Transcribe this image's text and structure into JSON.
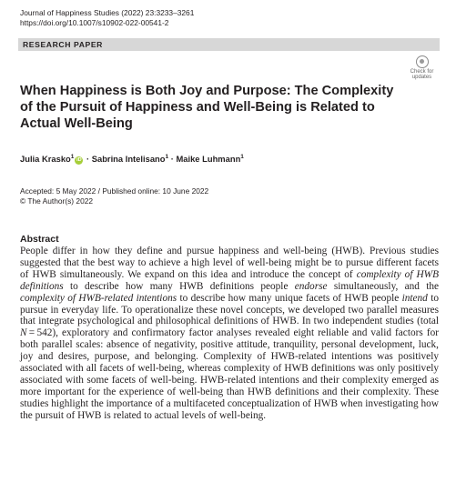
{
  "header": {
    "journal": "Journal of Happiness Studies (2022) 23:3233–3261",
    "doi": "https://doi.org/10.1007/s10902-022-00541-2"
  },
  "banner": "RESEARCH PAPER",
  "check_updates": {
    "line1": "Check for",
    "line2": "updates"
  },
  "title": "When Happiness is Both Joy and Purpose: The Complexity of the Pursuit of Happiness and Well-Being is Related to Actual Well-Being",
  "authors": [
    {
      "name": "Julia Krasko",
      "sup": "1",
      "orcid": true
    },
    {
      "name": "Sabrina Intelisano",
      "sup": "1",
      "orcid": false
    },
    {
      "name": "Maike Luhmann",
      "sup": "1",
      "orcid": false
    }
  ],
  "author_separator": " · ",
  "orcid_label": "iD",
  "dates": "Accepted: 5 May 2022 / Published online: 10 June 2022",
  "rights": "© The Author(s) 2022",
  "abstract_heading": "Abstract",
  "abstract": [
    {
      "t": "People differ in how they define and pursue happiness and well-being (HWB). Previous studies suggested that the best way to achieve a high level of well-being might be to pur­sue different facets of HWB simultaneously. We expand on this idea and introduce the concept of "
    },
    {
      "t": "complexity of HWB definitions",
      "i": true
    },
    {
      "t": " to describe how many HWB definitions peo­ple "
    },
    {
      "t": "endorse",
      "i": true
    },
    {
      "t": " simultaneously, and the "
    },
    {
      "t": "complexity of HWB-related intentions",
      "i": true
    },
    {
      "t": " to describe how many unique facets of HWB people "
    },
    {
      "t": "intend",
      "i": true
    },
    {
      "t": " to pursue in everyday life. To operationalize these novel concepts, we developed two parallel measures that integrate psychological and philosophical definitions of HWB. In two independent studies (total "
    },
    {
      "t": "N",
      "i": true
    },
    {
      "t": " = 542), exploratory and confirmatory factor analyses revealed eight reliable and valid factors for both paral­lel scales: absence of negativity, positive attitude, tranquility, personal development, luck, joy and desires, purpose, and belonging. Complexity of HWB-related intentions was pos­itively associated with all facets of well-being, whereas complexity of HWB definitions was only positively associated with some facets of well-being. HWB-related intentions and their complexity emerged as more important for the experience of well-being than HWB definitions and their complexity. These studies highlight the importance of a multifaceted conceptualization of HWB when investigating how the pursuit of HWB is related to actual levels of well-being."
    }
  ]
}
